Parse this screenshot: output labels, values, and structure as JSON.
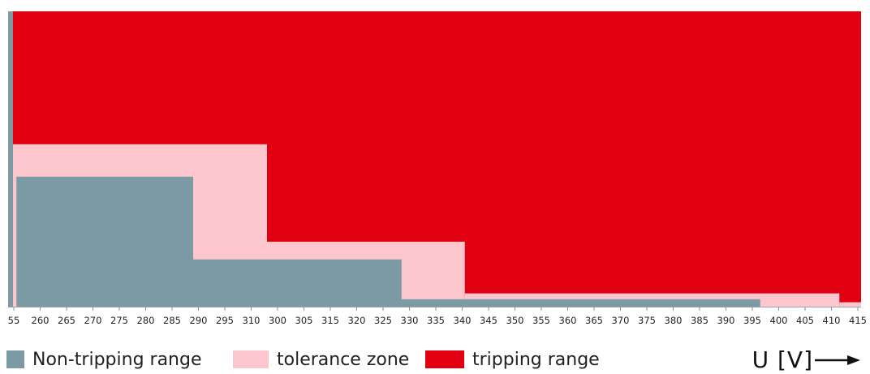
{
  "chart_data": {
    "type": "area",
    "xlabel": "U [V]",
    "x_ticks": [
      "55",
      "260",
      "265",
      "270",
      "275",
      "280",
      "285",
      "290",
      "295",
      "310",
      "300",
      "305",
      "315",
      "320",
      "325",
      "330",
      "335",
      "340",
      "345",
      "350",
      "355",
      "360",
      "365",
      "370",
      "375",
      "380",
      "385",
      "390",
      "395",
      "400",
      "405",
      "410",
      "415"
    ],
    "x_range_index": [
      0,
      32
    ],
    "y_range": [
      0,
      1
    ],
    "series": [
      {
        "name": "Non-tripping range",
        "color": "#7b9aa3",
        "steps": [
          {
            "from": 0,
            "to": 0.1,
            "level": 1.0
          },
          {
            "from": 0.1,
            "to": 6.8,
            "level": 0.44
          },
          {
            "from": 6.8,
            "to": 14.7,
            "level": 0.16
          },
          {
            "from": 14.7,
            "to": 28.3,
            "level": 0.025
          }
        ]
      },
      {
        "name": "tolerance zone",
        "color": "#fcc6cc",
        "steps": [
          {
            "from": 0.1,
            "to": 9.6,
            "level": 0.55
          },
          {
            "from": 9.6,
            "to": 17.1,
            "level": 0.22
          },
          {
            "from": 17.1,
            "to": 31.3,
            "level": 0.045
          },
          {
            "from": 31.3,
            "to": 39.2,
            "level": 0.015
          }
        ]
      },
      {
        "name": "tripping range",
        "color": "#e00012",
        "level": 1.0
      }
    ],
    "legend_placement": "bottom"
  },
  "legend": {
    "items": [
      {
        "label": "Non-tripping range",
        "color": "#7b9aa3"
      },
      {
        "label": "tolerance zone",
        "color": "#fcc6cc"
      },
      {
        "label": "tripping range",
        "color": "#e00012"
      }
    ],
    "axis_unit": "U [V]"
  }
}
